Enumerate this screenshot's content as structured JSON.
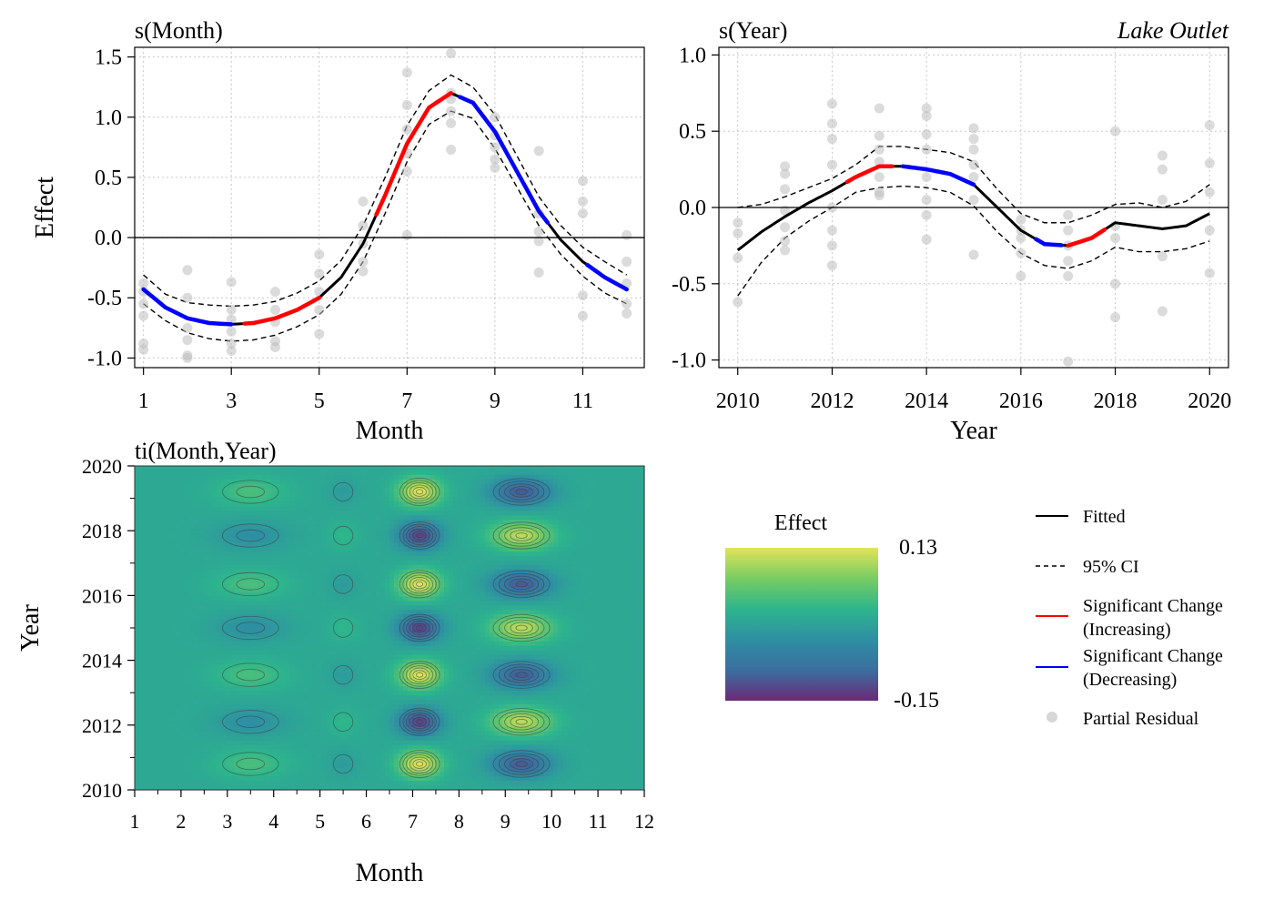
{
  "figure_label": "Lake Outlet",
  "chart_data": [
    {
      "id": "month",
      "type": "line",
      "title": "s(Month)",
      "xlabel": "Month",
      "ylabel": "Effect",
      "xlim": [
        0.8,
        12.4
      ],
      "ylim": [
        -1.08,
        1.58
      ],
      "xticks": [
        1,
        3,
        5,
        7,
        9,
        11
      ],
      "yticks": [
        -1.0,
        -0.5,
        0.0,
        0.5,
        1.0,
        1.5
      ],
      "ytick_labels": [
        "-1.0",
        "-0.5",
        "0.0",
        "0.5",
        "1.0",
        "1.5"
      ],
      "grid": true,
      "fitted": {
        "name": "Fitted",
        "x": [
          1.0,
          1.5,
          2.0,
          2.5,
          3.0,
          3.5,
          4.0,
          4.5,
          5.0,
          5.5,
          6.0,
          6.5,
          7.0,
          7.5,
          8.0,
          8.5,
          9.0,
          9.5,
          10.0,
          10.5,
          11.0,
          11.5,
          12.0
        ],
        "y": [
          -0.43,
          -0.58,
          -0.67,
          -0.71,
          -0.72,
          -0.71,
          -0.67,
          -0.6,
          -0.5,
          -0.33,
          -0.05,
          0.35,
          0.78,
          1.08,
          1.2,
          1.12,
          0.88,
          0.55,
          0.22,
          -0.02,
          -0.2,
          -0.33,
          -0.43
        ]
      },
      "ci_upper": [
        -0.31,
        -0.47,
        -0.54,
        -0.56,
        -0.57,
        -0.56,
        -0.53,
        -0.46,
        -0.36,
        -0.19,
        0.1,
        0.5,
        0.93,
        1.22,
        1.35,
        1.25,
        1.02,
        0.68,
        0.34,
        0.1,
        -0.08,
        -0.2,
        -0.31
      ],
      "ci_lower": [
        -0.55,
        -0.69,
        -0.79,
        -0.84,
        -0.86,
        -0.85,
        -0.81,
        -0.74,
        -0.64,
        -0.47,
        -0.2,
        0.2,
        0.63,
        0.94,
        1.05,
        0.99,
        0.74,
        0.42,
        0.1,
        -0.14,
        -0.32,
        -0.46,
        -0.55
      ],
      "significant": [
        {
          "direction": "decreasing",
          "from": 1.0,
          "to": 3.0
        },
        {
          "direction": "increasing",
          "from": 3.3,
          "to": 5.0
        },
        {
          "direction": "increasing",
          "from": 6.3,
          "to": 8.0
        },
        {
          "direction": "decreasing",
          "from": 8.2,
          "to": 10.2
        },
        {
          "direction": "decreasing",
          "from": 11.1,
          "to": 12.0
        }
      ],
      "partial_residuals": {
        "x": [
          1,
          1,
          1,
          1,
          1,
          1,
          2,
          2,
          2,
          2,
          2,
          2,
          3,
          3,
          3,
          3,
          3,
          3,
          4,
          4,
          4,
          4,
          4,
          5,
          5,
          5,
          5,
          5,
          6,
          6,
          6,
          6,
          6,
          7,
          7,
          7,
          7,
          7,
          7,
          8,
          8,
          8,
          8,
          8,
          8,
          9,
          9,
          9,
          9,
          9,
          10,
          10,
          10,
          10,
          10,
          11,
          11,
          11,
          11,
          11,
          12,
          12,
          12,
          12,
          12
        ],
        "y": [
          -0.38,
          -0.45,
          -0.65,
          -0.88,
          -0.93,
          -0.55,
          -0.27,
          -0.5,
          -0.75,
          -0.85,
          -0.98,
          -1.0,
          -0.37,
          -0.6,
          -0.68,
          -0.78,
          -0.88,
          -0.94,
          -0.45,
          -0.6,
          -0.7,
          -0.86,
          -0.91,
          -0.14,
          -0.3,
          -0.45,
          -0.6,
          -0.8,
          0.3,
          0.1,
          -0.05,
          -0.2,
          -0.28,
          1.37,
          1.1,
          0.9,
          0.7,
          0.55,
          0.02,
          1.53,
          1.2,
          1.15,
          1.05,
          0.95,
          0.73,
          1.0,
          0.85,
          0.75,
          0.65,
          0.58,
          0.72,
          0.2,
          0.05,
          -0.03,
          -0.29,
          0.47,
          0.3,
          0.2,
          -0.48,
          -0.65,
          0.02,
          -0.2,
          -0.38,
          -0.55,
          -0.63
        ]
      }
    },
    {
      "id": "year",
      "type": "line",
      "title": "s(Year)",
      "xlabel": "Year",
      "ylabel": "",
      "xlim": [
        2009.6,
        2020.4
      ],
      "ylim": [
        -1.05,
        1.05
      ],
      "xticks": [
        2010,
        2012,
        2014,
        2016,
        2018,
        2020
      ],
      "yticks": [
        -1.0,
        -0.5,
        0.0,
        0.5,
        1.0
      ],
      "ytick_labels": [
        "-1.0",
        "-0.5",
        "0.0",
        "0.5",
        "1.0"
      ],
      "grid": true,
      "fitted": {
        "name": "Fitted",
        "x": [
          2010,
          2010.5,
          2011,
          2011.5,
          2012,
          2012.5,
          2013,
          2013.5,
          2014,
          2014.5,
          2015,
          2015.5,
          2016,
          2016.5,
          2017,
          2017.5,
          2018,
          2018.5,
          2019,
          2019.5,
          2020
        ],
        "y": [
          -0.28,
          -0.16,
          -0.06,
          0.03,
          0.11,
          0.2,
          0.27,
          0.27,
          0.25,
          0.22,
          0.15,
          0.0,
          -0.15,
          -0.24,
          -0.25,
          -0.2,
          -0.1,
          -0.12,
          -0.14,
          -0.12,
          -0.04
        ]
      },
      "ci_upper": [
        0.0,
        0.02,
        0.07,
        0.13,
        0.19,
        0.28,
        0.4,
        0.4,
        0.38,
        0.36,
        0.3,
        0.12,
        -0.04,
        -0.1,
        -0.1,
        -0.05,
        0.02,
        0.03,
        0.0,
        0.04,
        0.15
      ],
      "ci_lower": [
        -0.58,
        -0.36,
        -0.2,
        -0.09,
        0.0,
        0.1,
        0.13,
        0.14,
        0.13,
        0.1,
        0.01,
        -0.16,
        -0.3,
        -0.38,
        -0.4,
        -0.35,
        -0.26,
        -0.29,
        -0.29,
        -0.27,
        -0.22
      ],
      "significant": [
        {
          "direction": "increasing",
          "from": 2012.3,
          "to": 2013.3
        },
        {
          "direction": "decreasing",
          "from": 2013.5,
          "to": 2015.0
        },
        {
          "direction": "decreasing",
          "from": 2016.3,
          "to": 2016.9
        },
        {
          "direction": "increasing",
          "from": 2017.0,
          "to": 2017.8
        }
      ],
      "partial_residuals": {
        "x": [
          2010,
          2010,
          2010,
          2010,
          2011,
          2011,
          2011,
          2011,
          2011,
          2011,
          2011,
          2012,
          2012,
          2012,
          2012,
          2012,
          2012,
          2012,
          2012,
          2013,
          2013,
          2013,
          2013,
          2013,
          2013,
          2013,
          2014,
          2014,
          2014,
          2014,
          2014,
          2014,
          2014,
          2014,
          2015,
          2015,
          2015,
          2015,
          2015,
          2015,
          2015,
          2016,
          2016,
          2016,
          2016,
          2016,
          2017,
          2017,
          2017,
          2017,
          2017,
          2017,
          2018,
          2018,
          2018,
          2018,
          2018,
          2019,
          2019,
          2019,
          2019,
          2019,
          2020,
          2020,
          2020,
          2020,
          2020
        ],
        "y": [
          -0.1,
          -0.17,
          -0.33,
          -0.62,
          0.27,
          0.22,
          0.12,
          -0.02,
          -0.13,
          -0.22,
          -0.28,
          0.68,
          0.55,
          0.45,
          0.28,
          0.0,
          -0.15,
          -0.25,
          -0.38,
          0.65,
          0.47,
          0.38,
          0.3,
          0.2,
          0.1,
          0.08,
          0.65,
          0.6,
          0.48,
          0.38,
          0.2,
          0.05,
          -0.05,
          -0.21,
          0.52,
          0.45,
          0.38,
          0.28,
          0.2,
          0.05,
          -0.31,
          -0.08,
          -0.15,
          -0.2,
          -0.3,
          -0.45,
          -0.05,
          -0.15,
          -0.25,
          -0.35,
          -0.45,
          -1.01,
          0.5,
          -0.12,
          -0.2,
          -0.5,
          -0.72,
          0.34,
          0.25,
          0.05,
          -0.32,
          -0.68,
          0.54,
          0.29,
          0.1,
          -0.15,
          -0.43
        ]
      }
    },
    {
      "id": "interaction",
      "type": "heatmap",
      "title": "ti(Month,Year)",
      "xlabel": "Month",
      "ylabel": "Year",
      "xlim": [
        1,
        12
      ],
      "ylim": [
        2010,
        2020
      ],
      "xticks": [
        1,
        2,
        3,
        4,
        5,
        6,
        7,
        8,
        9,
        10,
        11,
        12
      ],
      "yticks": [
        2010,
        2012,
        2014,
        2016,
        2018,
        2020
      ],
      "month_pattern": {
        "centers": [
          3.5,
          5.5,
          7.15,
          9.35
        ],
        "amplitudes": [
          0.04,
          -0.02,
          0.13,
          -0.11
        ],
        "widths": [
          0.75,
          0.32,
          0.45,
          0.65
        ]
      },
      "year_pattern": {
        "centers": [
          2010.8,
          2012.1,
          2013.55,
          2015.0,
          2016.35,
          2017.85,
          2019.2
        ],
        "signs": [
          1,
          -1,
          1,
          -1,
          1,
          -1,
          1
        ]
      },
      "colorbar": {
        "title": "Effect",
        "min": -0.15,
        "max": 0.13,
        "min_label": "-0.15",
        "max_label": "0.13",
        "colors": [
          "#6a2a78",
          "#3b6ea0",
          "#2e8fa3",
          "#2db58c",
          "#78cc63",
          "#e2e45a"
        ]
      }
    }
  ],
  "legend": {
    "fitted": "Fitted",
    "ci": "95% CI",
    "increasing_1": "Significant Change",
    "increasing_2": "(Increasing)",
    "decreasing_1": "Significant Change",
    "decreasing_2": "(Decreasing)",
    "residual": "Partial Residual"
  },
  "colors": {
    "fitted": "#000000",
    "increasing": "#ff0000",
    "decreasing": "#0000ff",
    "residual": "#bdbdbd",
    "grid": "#c8c8c8"
  }
}
